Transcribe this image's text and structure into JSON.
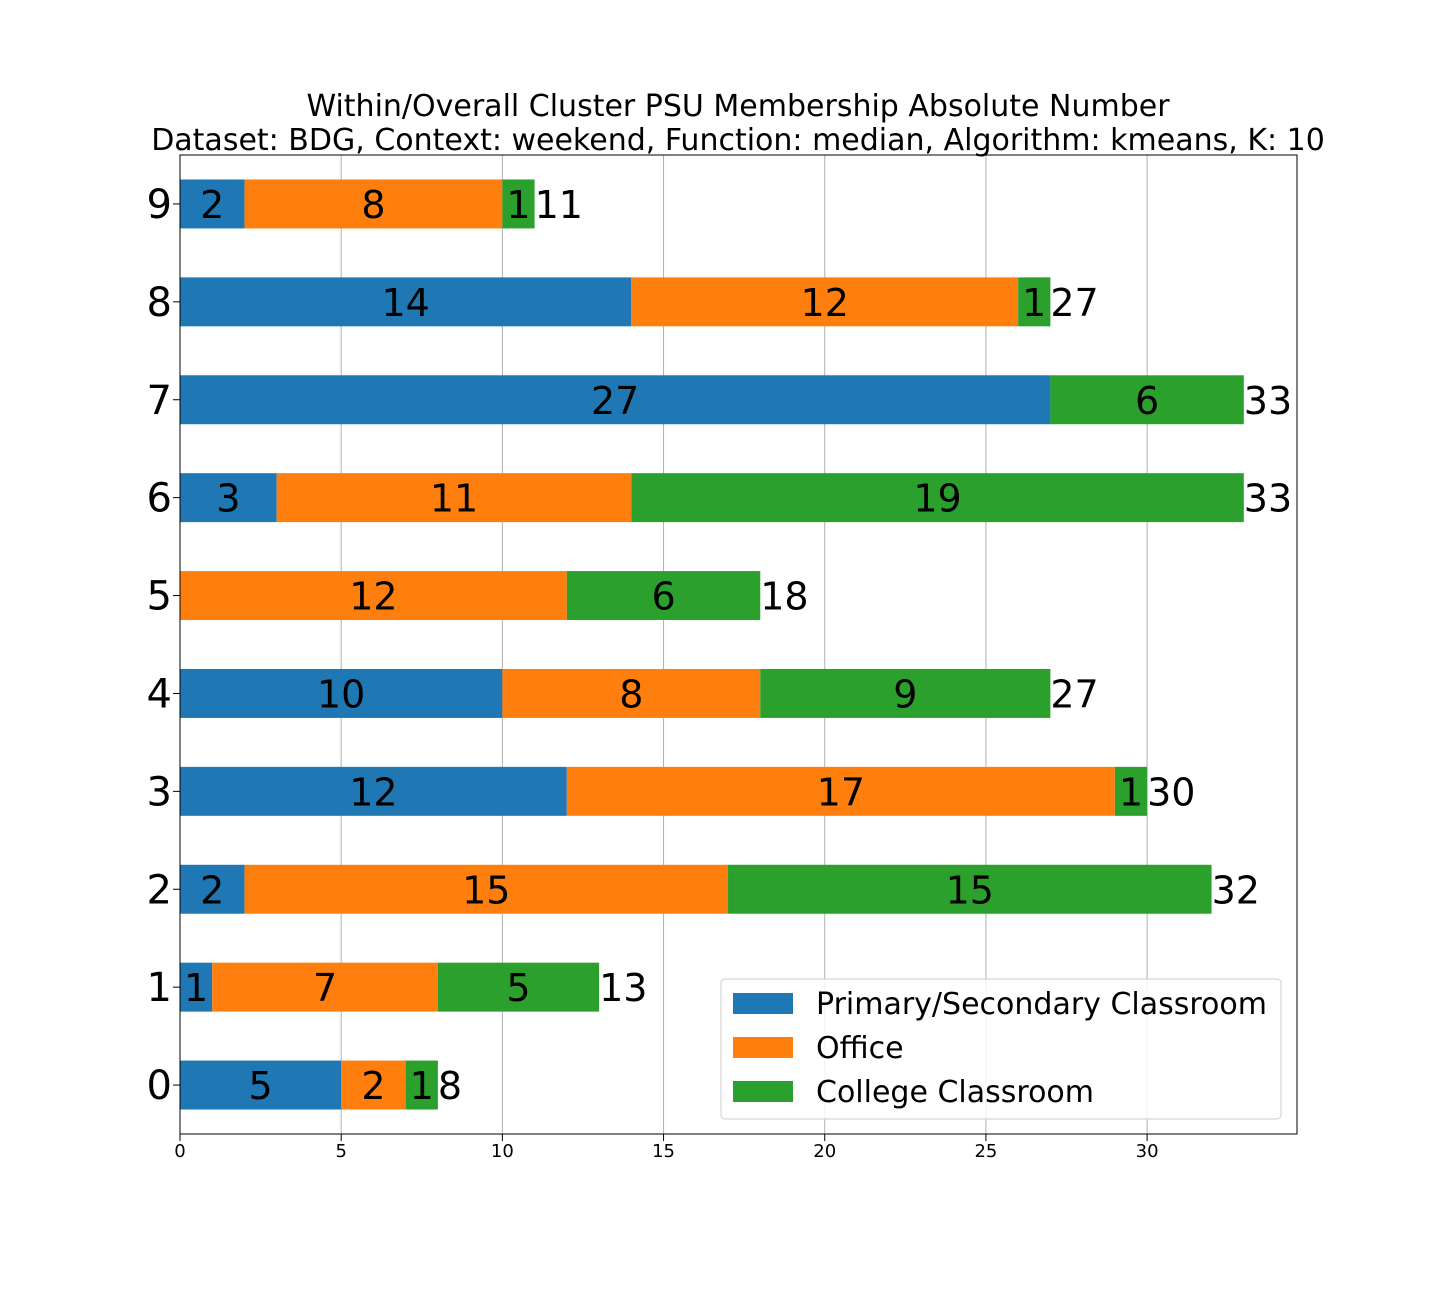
{
  "chart_data": {
    "type": "bar",
    "orientation": "horizontal",
    "stacked": true,
    "title": "Within/Overall Cluster PSU Membership Absolute Number",
    "subtitle": "Dataset: BDG, Context: weekend, Function: median, Algorithm: kmeans, K: 10",
    "xlabel": "",
    "ylabel": "",
    "categories": [
      "0",
      "1",
      "2",
      "3",
      "4",
      "5",
      "6",
      "7",
      "8",
      "9"
    ],
    "series": [
      {
        "name": "Primary/Secondary Classroom",
        "color": "#1f77b4",
        "values": [
          5,
          1,
          2,
          12,
          10,
          0,
          3,
          27,
          14,
          2
        ]
      },
      {
        "name": "Office",
        "color": "#ff7f0e",
        "values": [
          2,
          7,
          15,
          17,
          8,
          12,
          11,
          0,
          12,
          8
        ]
      },
      {
        "name": "College Classroom",
        "color": "#2ca02c",
        "values": [
          1,
          5,
          15,
          1,
          9,
          6,
          19,
          6,
          1,
          1
        ]
      }
    ],
    "totals": [
      8,
      13,
      32,
      30,
      27,
      18,
      33,
      33,
      27,
      11
    ],
    "xlim": [
      0,
      34.65
    ],
    "xticks": [
      0,
      5,
      10,
      15,
      20,
      25,
      30
    ],
    "grid": "vertical",
    "legend_position": "lower-right"
  }
}
